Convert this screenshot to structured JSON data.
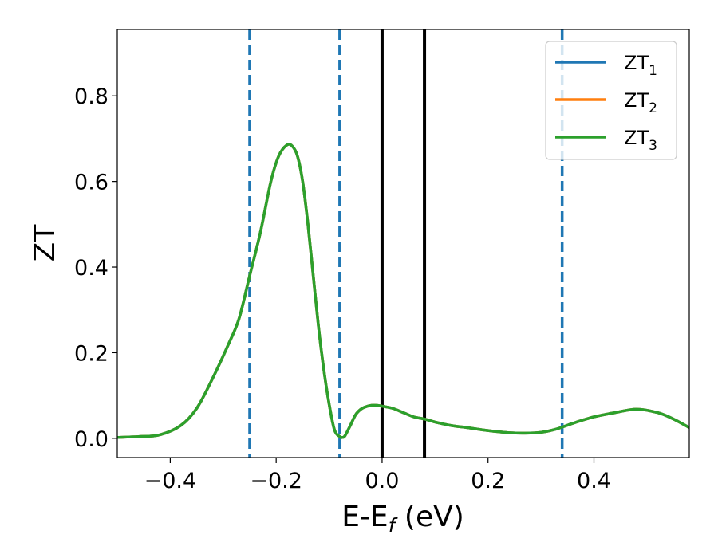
{
  "chart_data": {
    "type": "line",
    "xlabel_main": "E-E",
    "xlabel_sub": "f",
    "xlabel_unit": " (eV)",
    "ylabel": "ZT",
    "xlim": [
      -0.5,
      0.58
    ],
    "ylim": [
      -0.045,
      0.955
    ],
    "xticks": [
      -0.4,
      -0.2,
      0.0,
      0.2,
      0.4
    ],
    "xtick_labels": [
      "−0.4",
      "−0.2",
      "0.0",
      "0.2",
      "0.4"
    ],
    "yticks": [
      0.0,
      0.2,
      0.4,
      0.6,
      0.8
    ],
    "ytick_labels": [
      "0.0",
      "0.2",
      "0.4",
      "0.6",
      "0.8"
    ],
    "legend_position": "top-right",
    "x": [
      -0.5,
      -0.46,
      -0.42,
      -0.38,
      -0.35,
      -0.32,
      -0.29,
      -0.27,
      -0.25,
      -0.23,
      -0.21,
      -0.195,
      -0.18,
      -0.17,
      -0.16,
      -0.15,
      -0.14,
      -0.13,
      -0.12,
      -0.11,
      -0.1,
      -0.09,
      -0.08,
      -0.075,
      -0.07,
      -0.06,
      -0.05,
      -0.04,
      -0.03,
      -0.02,
      -0.01,
      0.0,
      0.02,
      0.04,
      0.06,
      0.08,
      0.1,
      0.13,
      0.16,
      0.2,
      0.24,
      0.27,
      0.3,
      0.33,
      0.36,
      0.4,
      0.44,
      0.48,
      0.52,
      0.55,
      0.58
    ],
    "series": [
      {
        "name": "ZT",
        "sub": "1",
        "color": "#1f77b4",
        "values": [
          0.002,
          0.004,
          0.008,
          0.03,
          0.07,
          0.14,
          0.22,
          0.28,
          0.38,
          0.48,
          0.6,
          0.66,
          0.685,
          0.683,
          0.66,
          0.6,
          0.5,
          0.38,
          0.26,
          0.16,
          0.08,
          0.02,
          0.004,
          0.002,
          0.006,
          0.03,
          0.055,
          0.068,
          0.074,
          0.077,
          0.077,
          0.075,
          0.07,
          0.06,
          0.05,
          0.045,
          0.038,
          0.03,
          0.025,
          0.018,
          0.013,
          0.012,
          0.014,
          0.022,
          0.035,
          0.05,
          0.06,
          0.068,
          0.06,
          0.045,
          0.025
        ]
      },
      {
        "name": "ZT",
        "sub": "2",
        "color": "#ff7f0e",
        "values": [
          0.002,
          0.004,
          0.008,
          0.03,
          0.07,
          0.14,
          0.22,
          0.28,
          0.38,
          0.48,
          0.6,
          0.66,
          0.685,
          0.683,
          0.66,
          0.6,
          0.5,
          0.38,
          0.26,
          0.16,
          0.08,
          0.02,
          0.004,
          0.002,
          0.006,
          0.03,
          0.055,
          0.068,
          0.074,
          0.077,
          0.077,
          0.075,
          0.07,
          0.06,
          0.05,
          0.045,
          0.038,
          0.03,
          0.025,
          0.018,
          0.013,
          0.012,
          0.014,
          0.022,
          0.035,
          0.05,
          0.06,
          0.068,
          0.06,
          0.045,
          0.025
        ]
      },
      {
        "name": "ZT",
        "sub": "3",
        "color": "#2ca02c",
        "values": [
          0.002,
          0.004,
          0.008,
          0.03,
          0.07,
          0.14,
          0.22,
          0.28,
          0.38,
          0.48,
          0.6,
          0.66,
          0.685,
          0.683,
          0.66,
          0.6,
          0.5,
          0.38,
          0.26,
          0.16,
          0.08,
          0.02,
          0.004,
          0.002,
          0.006,
          0.03,
          0.055,
          0.068,
          0.074,
          0.077,
          0.077,
          0.075,
          0.07,
          0.06,
          0.05,
          0.045,
          0.038,
          0.03,
          0.025,
          0.018,
          0.013,
          0.012,
          0.014,
          0.022,
          0.035,
          0.05,
          0.06,
          0.068,
          0.06,
          0.045,
          0.025
        ]
      }
    ],
    "vlines": [
      {
        "x": -0.25,
        "style": "dashed",
        "color": "#1f77b4"
      },
      {
        "x": -0.08,
        "style": "dashed",
        "color": "#1f77b4"
      },
      {
        "x": 0.0,
        "style": "solid",
        "color": "#000000"
      },
      {
        "x": 0.08,
        "style": "solid",
        "color": "#000000"
      },
      {
        "x": 0.34,
        "style": "dashed",
        "color": "#1f77b4"
      }
    ]
  }
}
